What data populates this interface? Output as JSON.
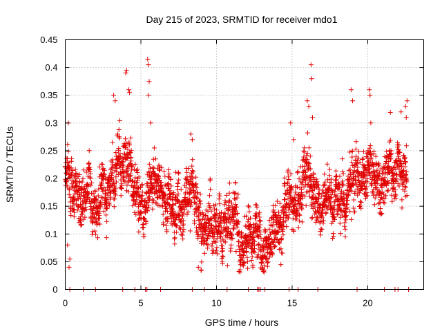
{
  "chart_data": {
    "type": "scatter",
    "title": "Day 215 of 2023, SRMTID for receiver mdo1",
    "xlabel": "GPS time / hours",
    "ylabel": "SRMTID / TECUs",
    "xlim": [
      0,
      23.7
    ],
    "ylim": [
      0,
      0.45
    ],
    "x_ticks": [
      0,
      5,
      10,
      15,
      20
    ],
    "x_tick_labels": [
      "0",
      "5",
      "10",
      "15",
      "20"
    ],
    "y_ticks": [
      0,
      0.05,
      0.1,
      0.15,
      0.2,
      0.25,
      0.3,
      0.35,
      0.4,
      0.45
    ],
    "y_tick_labels": [
      "0",
      "0.05",
      "0.1",
      "0.15",
      "0.2",
      "0.25",
      "0.3",
      "0.35",
      "0.4",
      "0.45"
    ],
    "grid": true,
    "marker": "plus",
    "series": [
      {
        "name": "SRMTID",
        "color": "#e00000",
        "trend": [
          [
            0.0,
            0.19
          ],
          [
            0.5,
            0.17
          ],
          [
            1.0,
            0.17
          ],
          [
            1.5,
            0.21
          ],
          [
            2.0,
            0.17
          ],
          [
            2.5,
            0.16
          ],
          [
            3.0,
            0.19
          ],
          [
            3.5,
            0.24
          ],
          [
            4.0,
            0.25
          ],
          [
            4.5,
            0.21
          ],
          [
            5.0,
            0.16
          ],
          [
            5.5,
            0.17
          ],
          [
            6.0,
            0.18
          ],
          [
            6.5,
            0.16
          ],
          [
            7.0,
            0.15
          ],
          [
            7.5,
            0.16
          ],
          [
            8.0,
            0.17
          ],
          [
            8.5,
            0.18
          ],
          [
            9.0,
            0.13
          ],
          [
            9.5,
            0.12
          ],
          [
            10.0,
            0.12
          ],
          [
            10.5,
            0.11
          ],
          [
            11.0,
            0.12
          ],
          [
            11.5,
            0.1
          ],
          [
            12.0,
            0.09
          ],
          [
            12.5,
            0.12
          ],
          [
            13.0,
            0.085
          ],
          [
            13.5,
            0.09
          ],
          [
            14.0,
            0.12
          ],
          [
            14.5,
            0.15
          ],
          [
            15.0,
            0.13
          ],
          [
            15.5,
            0.16
          ],
          [
            16.0,
            0.2
          ],
          [
            16.5,
            0.16
          ],
          [
            17.0,
            0.15
          ],
          [
            17.5,
            0.19
          ],
          [
            18.0,
            0.16
          ],
          [
            18.5,
            0.17
          ],
          [
            19.0,
            0.2
          ],
          [
            19.5,
            0.2
          ],
          [
            20.0,
            0.22
          ],
          [
            20.5,
            0.19
          ],
          [
            21.0,
            0.17
          ],
          [
            21.5,
            0.2
          ],
          [
            22.0,
            0.21
          ],
          [
            22.6,
            0.22
          ]
        ],
        "spread": 0.045,
        "samples": 2600,
        "seed": 215
      }
    ],
    "outliers": [
      [
        0.2,
        0.3
      ],
      [
        0.3,
        0.055
      ],
      [
        0.25,
        0.04
      ],
      [
        0.15,
        0.08
      ],
      [
        3.2,
        0.35
      ],
      [
        3.3,
        0.34
      ],
      [
        4.0,
        0.39
      ],
      [
        4.05,
        0.395
      ],
      [
        4.2,
        0.36
      ],
      [
        4.25,
        0.355
      ],
      [
        5.45,
        0.415
      ],
      [
        5.5,
        0.405
      ],
      [
        5.55,
        0.375
      ],
      [
        5.5,
        0.35
      ],
      [
        5.65,
        0.3
      ],
      [
        8.3,
        0.28
      ],
      [
        8.4,
        0.27
      ],
      [
        8.8,
        0.04
      ],
      [
        9.0,
        0.035
      ],
      [
        14.9,
        0.3
      ],
      [
        15.1,
        0.27
      ],
      [
        16.0,
        0.34
      ],
      [
        16.1,
        0.33
      ],
      [
        16.25,
        0.405
      ],
      [
        16.3,
        0.38
      ],
      [
        16.35,
        0.31
      ],
      [
        18.9,
        0.36
      ],
      [
        19.0,
        0.34
      ],
      [
        20.1,
        0.36
      ],
      [
        20.15,
        0.35
      ],
      [
        20.2,
        0.3
      ],
      [
        22.5,
        0.33
      ],
      [
        22.6,
        0.34
      ],
      [
        22.55,
        0.31
      ],
      [
        22.2,
        0.32
      ]
    ],
    "zero_points_x": [
      0.3,
      1.2,
      2.0,
      3.8,
      4.6,
      5.3,
      5.4,
      6.3,
      8.4,
      9.2,
      10.7,
      12.1,
      12.7,
      12.8,
      12.9,
      13.2,
      14.8,
      15.4,
      16.7,
      19.3,
      21.1,
      21.8,
      22.0,
      22.7
    ]
  }
}
